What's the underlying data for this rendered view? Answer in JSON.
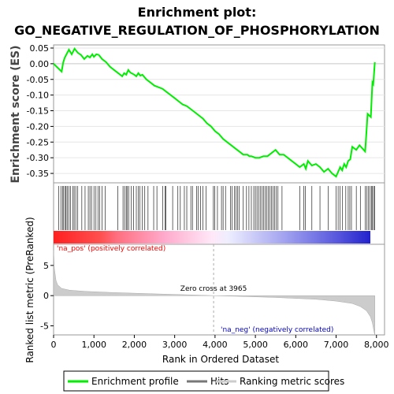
{
  "title_line1": "Enrichment plot:",
  "title_line2": "GO_NEGATIVE_REGULATION_OF_PHOSPHORYLATION",
  "colors": {
    "enrichment": "#00ee00",
    "hits": "#000000",
    "metric_fill": "#cccccc",
    "pos_label": "#ff0000",
    "neg_label": "#0000cc"
  },
  "chart_data": [
    {
      "type": "line",
      "ylabel": "Enrichment score (ES)",
      "ylim": [
        -0.38,
        0.06
      ],
      "yticks": [
        0.05,
        0.0,
        -0.05,
        -0.1,
        -0.15,
        -0.2,
        -0.25,
        -0.3,
        -0.35
      ],
      "ytick_labels": [
        "0.05",
        "0.00",
        "-0.05",
        "-0.10",
        "-0.15",
        "-0.20",
        "-0.25",
        "-0.30",
        "-0.35"
      ],
      "series": [
        {
          "name": "Enrichment profile",
          "x": [
            0,
            200,
            240,
            280,
            320,
            380,
            450,
            520,
            600,
            680,
            760,
            840,
            900,
            960,
            1000,
            1060,
            1120,
            1200,
            1300,
            1400,
            1500,
            1600,
            1700,
            1750,
            1800,
            1850,
            1900,
            2000,
            2050,
            2100,
            2150,
            2200,
            2300,
            2400,
            2500,
            2600,
            2700,
            2800,
            2900,
            3000,
            3100,
            3200,
            3300,
            3400,
            3500,
            3600,
            3700,
            3800,
            3900,
            4000,
            4100,
            4200,
            4300,
            4400,
            4500,
            4600,
            4700,
            4800,
            4850,
            4900,
            5000,
            5100,
            5200,
            5300,
            5400,
            5500,
            5600,
            5700,
            5800,
            5900,
            6000,
            6100,
            6200,
            6250,
            6300,
            6400,
            6500,
            6600,
            6700,
            6800,
            6900,
            7000,
            7050,
            7100,
            7150,
            7200,
            7250,
            7300,
            7350,
            7400,
            7500,
            7580,
            7650,
            7720,
            7760,
            7780,
            7820,
            7860,
            7880,
            7900,
            7920,
            7960
          ],
          "y": [
            0.0,
            -0.025,
            0.005,
            0.02,
            0.03,
            0.045,
            0.03,
            0.048,
            0.035,
            0.028,
            0.015,
            0.025,
            0.02,
            0.03,
            0.022,
            0.03,
            0.028,
            0.015,
            0.005,
            -0.01,
            -0.02,
            -0.03,
            -0.04,
            -0.03,
            -0.035,
            -0.02,
            -0.028,
            -0.035,
            -0.04,
            -0.03,
            -0.038,
            -0.035,
            -0.05,
            -0.06,
            -0.07,
            -0.075,
            -0.08,
            -0.09,
            -0.1,
            -0.11,
            -0.12,
            -0.13,
            -0.135,
            -0.145,
            -0.155,
            -0.165,
            -0.175,
            -0.19,
            -0.2,
            -0.215,
            -0.225,
            -0.24,
            -0.25,
            -0.26,
            -0.27,
            -0.28,
            -0.29,
            -0.29,
            -0.295,
            -0.295,
            -0.3,
            -0.3,
            -0.295,
            -0.295,
            -0.285,
            -0.275,
            -0.29,
            -0.29,
            -0.3,
            -0.31,
            -0.32,
            -0.33,
            -0.32,
            -0.335,
            -0.31,
            -0.325,
            -0.32,
            -0.33,
            -0.345,
            -0.335,
            -0.35,
            -0.36,
            -0.345,
            -0.33,
            -0.34,
            -0.32,
            -0.33,
            -0.31,
            -0.305,
            -0.265,
            -0.275,
            -0.26,
            -0.27,
            -0.28,
            -0.2,
            -0.16,
            -0.165,
            -0.17,
            -0.115,
            -0.06,
            -0.065,
            0.005
          ]
        }
      ]
    },
    {
      "type": "bar",
      "name": "Hits",
      "hit_positions": [
        130,
        180,
        220,
        250,
        290,
        310,
        340,
        380,
        420,
        480,
        510,
        550,
        600,
        700,
        780,
        860,
        900,
        940,
        1000,
        1050,
        1100,
        1140,
        1200,
        1280,
        1590,
        1720,
        1760,
        1800,
        1830,
        1860,
        1920,
        1980,
        2050,
        2100,
        2140,
        2200,
        2260,
        2340,
        2480,
        2560,
        2700,
        2760,
        2780,
        2950,
        3080,
        3140,
        3240,
        3300,
        3400,
        3440,
        3540,
        3580,
        3640,
        3700,
        3780,
        3960,
        3990,
        4060,
        4160,
        4200,
        4260,
        4380,
        4420,
        4480,
        4520,
        4560,
        4600,
        4700,
        4780,
        4840,
        4900,
        4960,
        5000,
        5040,
        5080,
        5120,
        5160,
        5200,
        5240,
        5280,
        5320,
        5360,
        5400,
        5440,
        5480,
        5520,
        5560,
        5660,
        6100,
        6200,
        6240,
        6400,
        6600,
        6800,
        7000,
        7050,
        7100,
        7160,
        7240,
        7300,
        7340,
        7380,
        7500,
        7600,
        7720,
        7760,
        7800,
        7840,
        7880,
        7900,
        7930,
        7960
      ]
    },
    {
      "type": "area",
      "ylabel": "Ranked list metric (PreRanked)",
      "xlabel": "Rank in Ordered Dataset",
      "xlim": [
        0,
        8200
      ],
      "xticks": [
        0,
        1000,
        2000,
        3000,
        4000,
        5000,
        6000,
        7000,
        8000
      ],
      "xtick_labels": [
        "0",
        "1,000",
        "2,000",
        "3,000",
        "4,000",
        "5,000",
        "6,000",
        "7,000",
        "8,000"
      ],
      "ylim": [
        -6.5,
        8.5
      ],
      "yticks": [
        5,
        0,
        -5
      ],
      "ytick_labels": [
        "5",
        "0",
        "-5"
      ],
      "series": [
        {
          "name": "Ranking metric scores",
          "x": [
            0,
            20,
            60,
            100,
            200,
            400,
            800,
            1500,
            2500,
            3500,
            3965,
            4500,
            5500,
            6500,
            7000,
            7400,
            7600,
            7750,
            7850,
            7900,
            7940,
            7960
          ],
          "y": [
            7.5,
            4.5,
            2.5,
            1.8,
            1.2,
            0.9,
            0.7,
            0.5,
            0.3,
            0.1,
            0.0,
            -0.1,
            -0.3,
            -0.6,
            -0.9,
            -1.3,
            -1.8,
            -2.5,
            -3.5,
            -4.5,
            -6.0,
            -6.5
          ]
        }
      ],
      "zero_cross_label": "Zero cross at 3965",
      "zero_cross_x": 3965,
      "pos_label": "'na_pos' (positively correlated)",
      "neg_label": "'na_neg' (negatively correlated)"
    }
  ],
  "legend": {
    "items": [
      {
        "label": "Enrichment profile",
        "color": "#00ee00"
      },
      {
        "label": "Hits",
        "color": "#777777"
      },
      {
        "label": "Ranking metric scores",
        "color": "#cccccc"
      }
    ]
  }
}
